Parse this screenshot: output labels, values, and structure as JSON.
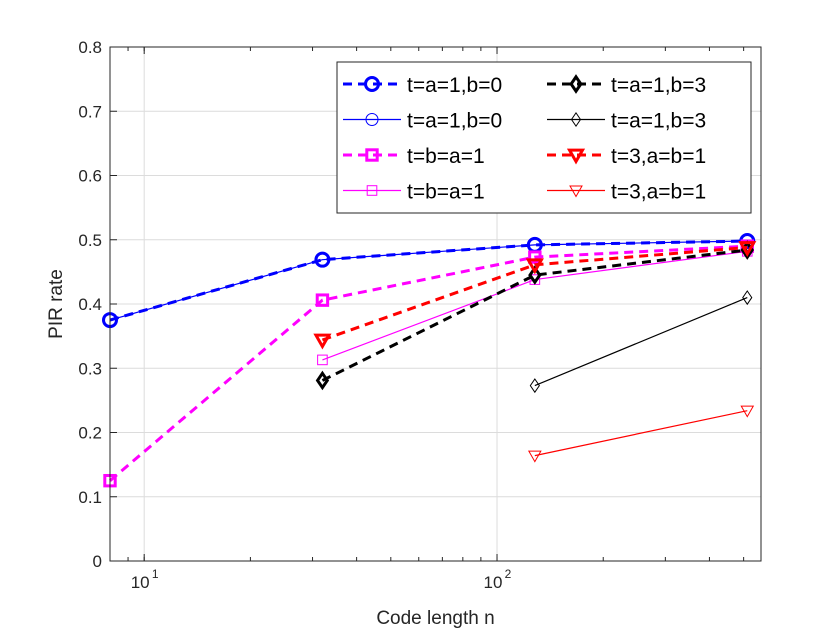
{
  "chart_data": {
    "type": "line",
    "title": "",
    "xlabel": "Code length n",
    "ylabel": "PIR rate",
    "xscale": "log",
    "xlim": [
      8,
      560
    ],
    "ylim": [
      0,
      0.8
    ],
    "yticks": [
      0,
      0.1,
      0.2,
      0.3,
      0.4,
      0.5,
      0.6,
      0.7,
      0.8
    ],
    "ytick_labels": [
      "0",
      "0.1",
      "0.2",
      "0.3",
      "0.4",
      "0.5",
      "0.6",
      "0.7",
      "0.8"
    ],
    "xticks": [
      10,
      100
    ],
    "xtick_labels": [
      {
        "base": "10",
        "exp": "1"
      },
      {
        "base": "10",
        "exp": "2"
      }
    ],
    "grid": true,
    "legend_position": "top-right",
    "legend_columns": 2,
    "series": [
      {
        "name": "t=a=1,b=0",
        "color": "#0000ff",
        "style": "dashed",
        "width": "thick",
        "marker": "circle",
        "x": [
          8,
          32,
          128,
          512
        ],
        "y": [
          0.375,
          0.469,
          0.492,
          0.498
        ]
      },
      {
        "name": "t=a=1,b=0",
        "color": "#0000ff",
        "style": "solid",
        "width": "thin",
        "marker": "circle",
        "x": [
          8,
          32,
          128,
          512
        ],
        "y": [
          0.375,
          0.469,
          0.492,
          0.498
        ]
      },
      {
        "name": "t=b=a=1",
        "color": "#ff00ff",
        "style": "dashed",
        "width": "thick",
        "marker": "square",
        "x": [
          8,
          32,
          128,
          512
        ],
        "y": [
          0.125,
          0.406,
          0.473,
          0.49
        ]
      },
      {
        "name": "t=b=a=1",
        "color": "#ff00ff",
        "style": "solid",
        "width": "thin",
        "marker": "square",
        "x": [
          32,
          128,
          512
        ],
        "y": [
          0.313,
          0.438,
          0.482
        ]
      },
      {
        "name": "t=a=1,b=3",
        "color": "#000000",
        "style": "dashed",
        "width": "thick",
        "marker": "diamond",
        "x": [
          32,
          128,
          512
        ],
        "y": [
          0.281,
          0.445,
          0.484
        ]
      },
      {
        "name": "t=a=1,b=3",
        "color": "#000000",
        "style": "solid",
        "width": "thin",
        "marker": "diamond",
        "x": [
          128,
          512
        ],
        "y": [
          0.273,
          0.41
        ]
      },
      {
        "name": "t=3,a=b=1",
        "color": "#ff0000",
        "style": "dashed",
        "width": "thick",
        "marker": "triangle-down",
        "x": [
          32,
          128,
          512
        ],
        "y": [
          0.344,
          0.461,
          0.488
        ]
      },
      {
        "name": "t=3,a=b=1",
        "color": "#ff0000",
        "style": "solid",
        "width": "thin",
        "marker": "triangle-down",
        "x": [
          128,
          512
        ],
        "y": [
          0.164,
          0.234
        ]
      }
    ],
    "legend_order": [
      0,
      4,
      1,
      5,
      2,
      6,
      3,
      7
    ]
  }
}
